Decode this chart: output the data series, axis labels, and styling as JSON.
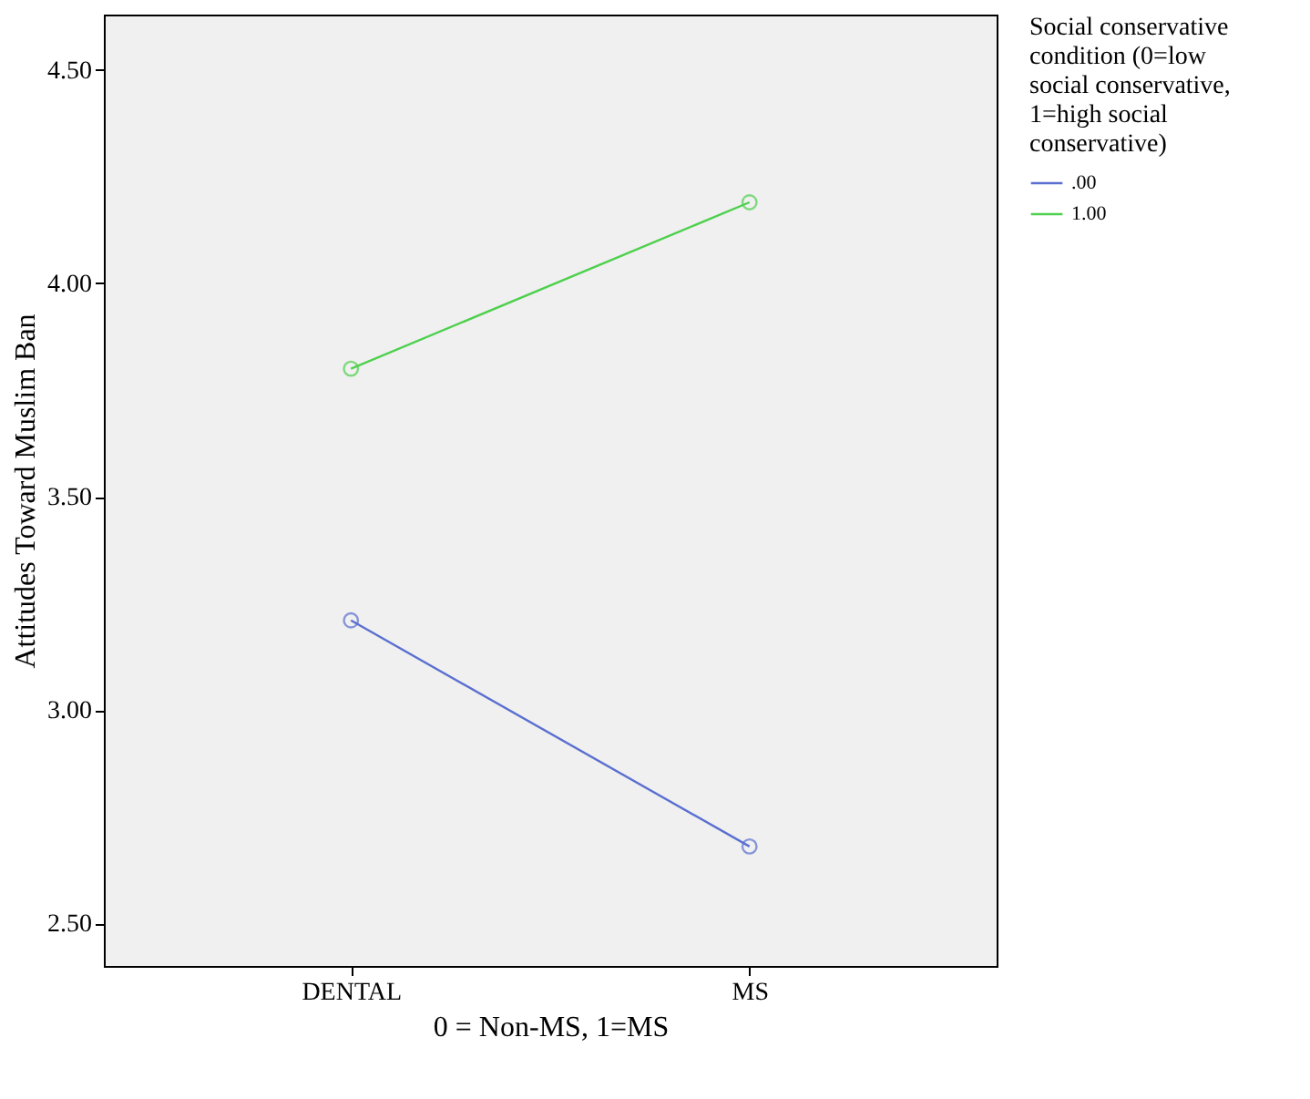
{
  "chart_data": {
    "type": "line",
    "xlabel": "0 = Non-MS, 1=MS",
    "ylabel": "Attitudes Toward Muslim Ban",
    "legend_title": "Social conservative condition (0=low social conservative, 1=high social conservative)",
    "categories": [
      "DENTAL",
      "MS"
    ],
    "series": [
      {
        "name": ".00",
        "color": "#5a6fd0",
        "values": [
          3.21,
          2.68
        ]
      },
      {
        "name": "1.00",
        "color": "#4ed04e",
        "values": [
          3.8,
          4.19
        ]
      }
    ],
    "ylim": [
      2.4,
      4.63
    ],
    "yticks": [
      {
        "value": 2.5,
        "label": "2.50"
      },
      {
        "value": 3.0,
        "label": "3.00"
      },
      {
        "value": 3.5,
        "label": "3.50"
      },
      {
        "value": 4.0,
        "label": "4.00"
      },
      {
        "value": 4.5,
        "label": "4.50"
      }
    ],
    "marker": "circle",
    "line_style": "solid",
    "grid": false,
    "legend": "top right"
  }
}
